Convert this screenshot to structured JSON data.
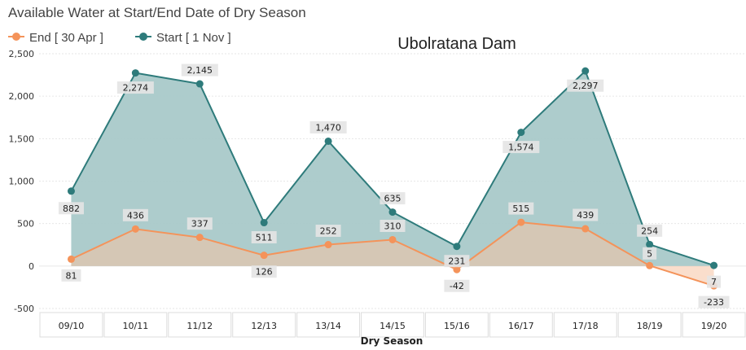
{
  "chart_data": {
    "type": "area",
    "title": "Available Water at Start/End Date of Dry Season",
    "subtitle": "Ubolratana Dam",
    "xlabel": "Dry Season",
    "ylabel": "",
    "ylim": [
      -500,
      2500
    ],
    "yticks": [
      "2,500",
      "2,000",
      "1,500",
      "1,000",
      "500",
      "0",
      "-500"
    ],
    "ytick_values": [
      2500,
      2000,
      1500,
      1000,
      500,
      0,
      -500
    ],
    "grid": true,
    "legend_position": "top-left",
    "categories": [
      "09/10",
      "10/11",
      "11/12",
      "12/13",
      "13/14",
      "14/15",
      "15/16",
      "16/17",
      "17/18",
      "18/19",
      "19/20"
    ],
    "series": [
      {
        "name": "Start [ 1 Nov ]",
        "color": "#2e7b7b",
        "fill": "#a9c9c9",
        "values": [
          882,
          2274,
          2145,
          511,
          1470,
          635,
          231,
          1574,
          2297,
          254,
          7
        ],
        "labels": [
          "882",
          "2,274",
          "2,145",
          "511",
          "1,470",
          "635",
          "231",
          "1,574",
          "2,297",
          "254",
          "7"
        ]
      },
      {
        "name": "End [ 30 Apr ]",
        "color": "#f4935a",
        "fill": "#f6c2a3",
        "values": [
          81,
          436,
          337,
          126,
          252,
          310,
          -42,
          515,
          439,
          5,
          -233
        ],
        "labels": [
          "81",
          "436",
          "337",
          "126",
          "252",
          "310",
          "-42",
          "515",
          "439",
          "5",
          "-233"
        ]
      }
    ]
  }
}
